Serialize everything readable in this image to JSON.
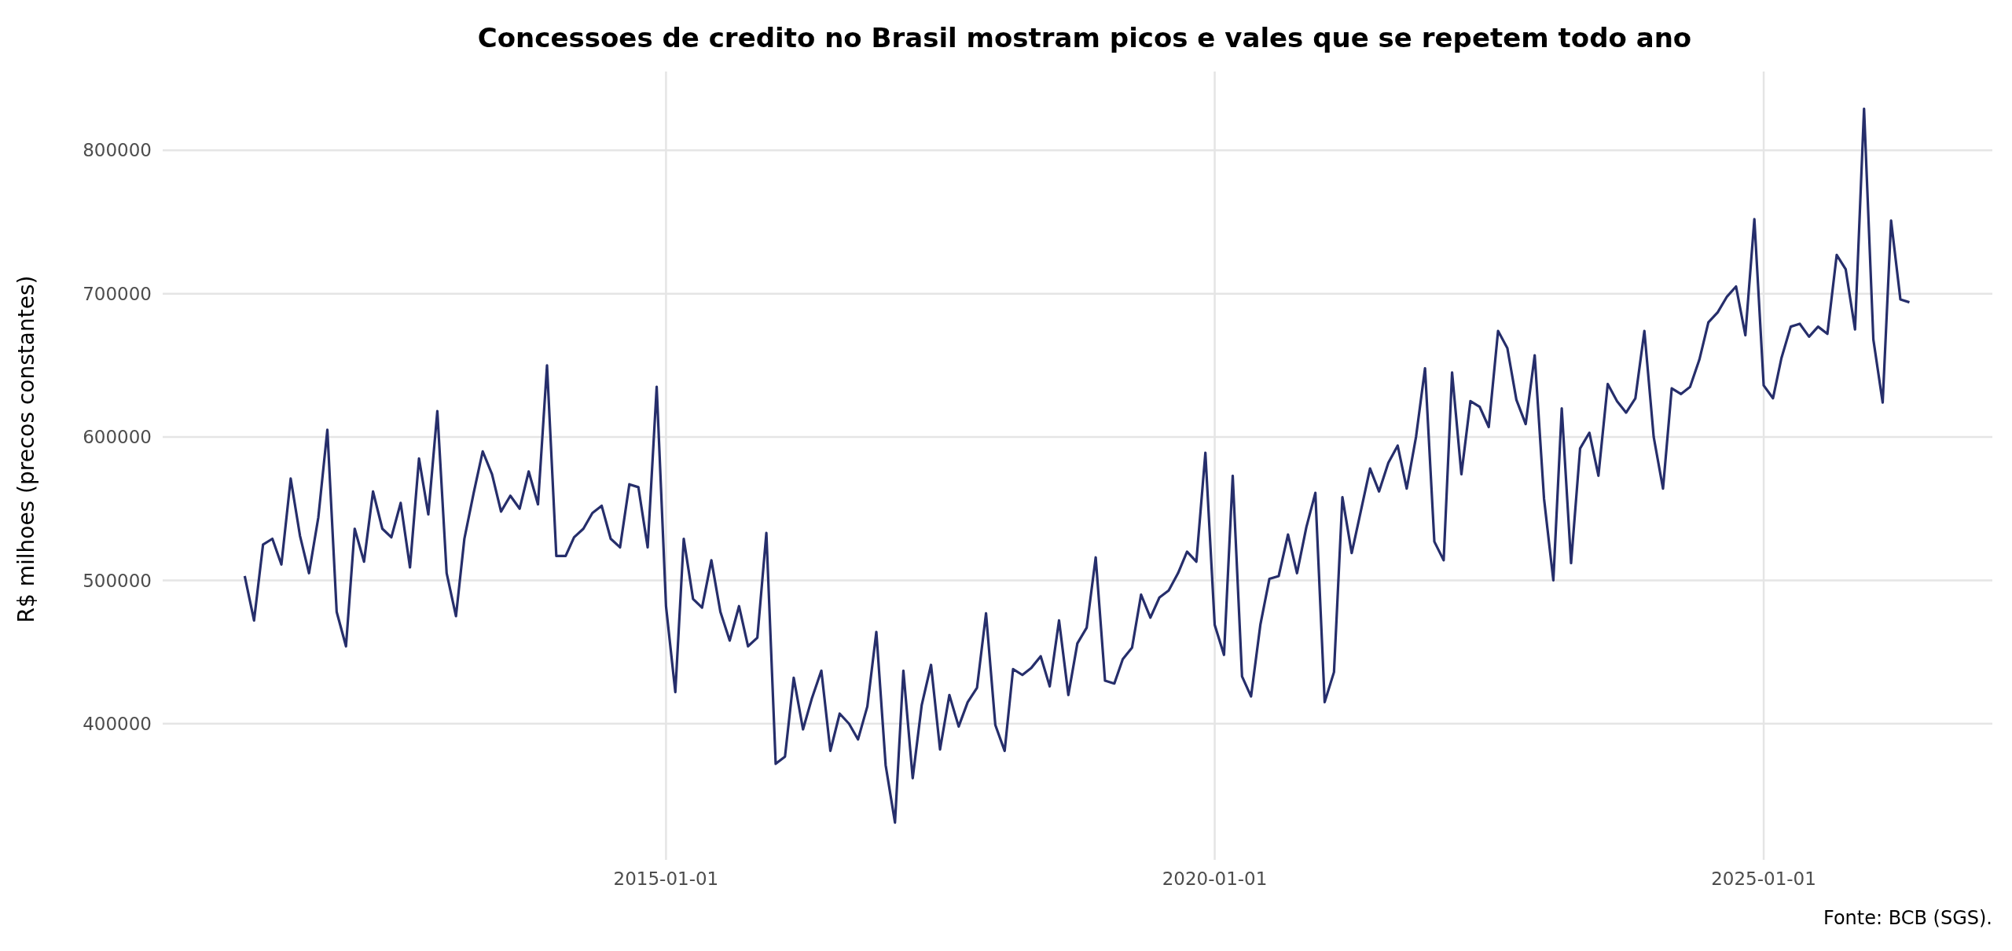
{
  "chart_data": {
    "type": "line",
    "title": "Concessoes de credito no Brasil mostram picos e vales que se repetem todo ano",
    "ylabel": "R$ milhoes (precos constantes)",
    "annotations": [
      "Fonte: BCB (SGS)."
    ],
    "x": [
      "2011-03",
      "2011-04",
      "2011-05",
      "2011-06",
      "2011-07",
      "2011-08",
      "2011-09",
      "2011-10",
      "2011-11",
      "2011-12",
      "2012-01",
      "2012-02",
      "2012-03",
      "2012-04",
      "2012-05",
      "2012-06",
      "2012-07",
      "2012-08",
      "2012-09",
      "2012-10",
      "2012-11",
      "2012-12",
      "2013-01",
      "2013-02",
      "2013-03",
      "2013-04",
      "2013-05",
      "2013-06",
      "2013-07",
      "2013-08",
      "2013-09",
      "2013-10",
      "2013-11",
      "2013-12",
      "2014-01",
      "2014-02",
      "2014-03",
      "2014-04",
      "2014-05",
      "2014-06",
      "2014-07",
      "2014-08",
      "2014-09",
      "2014-10",
      "2014-11",
      "2014-12",
      "2015-01",
      "2015-02",
      "2015-03",
      "2015-04",
      "2015-05",
      "2015-06",
      "2015-07",
      "2015-08",
      "2015-09",
      "2015-10",
      "2015-11",
      "2015-12",
      "2016-01",
      "2016-02",
      "2016-03",
      "2016-04",
      "2016-05",
      "2016-06",
      "2016-07",
      "2016-08",
      "2016-09",
      "2016-10",
      "2016-11",
      "2016-12",
      "2017-01",
      "2017-02",
      "2017-03",
      "2017-04",
      "2017-05",
      "2017-06",
      "2017-07",
      "2017-08",
      "2017-09",
      "2017-10",
      "2017-11",
      "2017-12",
      "2018-01",
      "2018-02",
      "2018-03",
      "2018-04",
      "2018-05",
      "2018-06",
      "2018-07",
      "2018-08",
      "2018-09",
      "2018-10",
      "2018-11",
      "2018-12",
      "2019-01",
      "2019-02",
      "2019-03",
      "2019-04",
      "2019-05",
      "2019-06",
      "2019-07",
      "2019-08",
      "2019-09",
      "2019-10",
      "2019-11",
      "2019-12",
      "2020-01",
      "2020-02",
      "2020-03",
      "2020-04",
      "2020-05",
      "2020-06",
      "2020-07",
      "2020-08",
      "2020-09",
      "2020-10",
      "2020-11",
      "2020-12",
      "2021-01",
      "2021-02",
      "2021-03",
      "2021-04",
      "2021-05",
      "2021-06",
      "2021-07",
      "2021-08",
      "2021-09",
      "2021-10",
      "2021-11",
      "2021-12",
      "2022-01",
      "2022-02",
      "2022-03",
      "2022-04",
      "2022-05",
      "2022-06",
      "2022-07",
      "2022-08",
      "2022-09",
      "2022-10",
      "2022-11",
      "2022-12",
      "2023-01",
      "2023-02",
      "2023-03",
      "2023-04",
      "2023-05",
      "2023-06",
      "2023-07",
      "2023-08",
      "2023-09",
      "2023-10",
      "2023-11",
      "2023-12",
      "2024-01",
      "2024-02",
      "2024-03",
      "2024-04",
      "2024-05",
      "2024-06",
      "2024-07",
      "2024-08",
      "2024-09",
      "2024-10",
      "2024-11",
      "2024-12",
      "2025-01",
      "2025-02",
      "2025-03",
      "2025-04",
      "2025-05",
      "2025-06",
      "2025-07",
      "2025-08",
      "2025-09",
      "2025-10",
      "2025-11",
      "2025-12",
      "2026-01",
      "2026-02",
      "2026-03",
      "2026-04",
      "2026-05"
    ],
    "series": [
      {
        "color": "#262e6b",
        "values": [
          503000,
          472000,
          525000,
          529000,
          511000,
          571000,
          531000,
          505000,
          544000,
          605000,
          478000,
          454000,
          536000,
          513000,
          562000,
          536000,
          530000,
          554000,
          509000,
          585000,
          546000,
          618000,
          505000,
          475000,
          529000,
          561000,
          590000,
          574000,
          548000,
          559000,
          550000,
          576000,
          553000,
          650000,
          517000,
          517000,
          530000,
          536000,
          547000,
          552000,
          529000,
          523000,
          567000,
          565000,
          523000,
          635000,
          482000,
          422000,
          529000,
          487000,
          481000,
          514000,
          478000,
          458000,
          482000,
          454000,
          460000,
          533000,
          372000,
          377000,
          432000,
          396000,
          418000,
          437000,
          381000,
          407000,
          400000,
          389000,
          412000,
          464000,
          371000,
          331000,
          437000,
          362000,
          413000,
          441000,
          382000,
          420000,
          398000,
          415000,
          425000,
          477000,
          399000,
          381000,
          438000,
          434000,
          439000,
          447000,
          426000,
          472000,
          420000,
          456000,
          467000,
          516000,
          430000,
          428000,
          445000,
          453000,
          490000,
          474000,
          488000,
          493000,
          505000,
          520000,
          513000,
          589000,
          469000,
          448000,
          573000,
          433000,
          419000,
          469000,
          501000,
          503000,
          532000,
          505000,
          537000,
          561000,
          415000,
          436000,
          558000,
          519000,
          548000,
          578000,
          562000,
          582000,
          594000,
          564000,
          600000,
          648000,
          527000,
          514000,
          645000,
          574000,
          625000,
          621000,
          607000,
          674000,
          662000,
          626000,
          609000,
          657000,
          557000,
          500000,
          620000,
          512000,
          592000,
          603000,
          573000,
          637000,
          625000,
          617000,
          627000,
          674000,
          600000,
          564000,
          634000,
          630000,
          635000,
          654000,
          680000,
          687000,
          698000,
          705000,
          671000,
          752000,
          636000,
          627000,
          655000,
          677000,
          679000,
          670000,
          677000,
          672000,
          727000,
          717000,
          675000,
          829000,
          668000,
          624000,
          751000,
          696000,
          694000
        ]
      }
    ],
    "xlim": [
      "2010-06",
      "2027-02"
    ],
    "xticks": [
      "2015-01-01",
      "2020-01-01",
      "2025-01-01"
    ],
    "ylim": [
      305000,
      855000
    ],
    "yticks": [
      400000,
      500000,
      600000,
      700000,
      800000
    ],
    "grid": true,
    "legend": false,
    "marker": "none",
    "line_style": "solid"
  }
}
